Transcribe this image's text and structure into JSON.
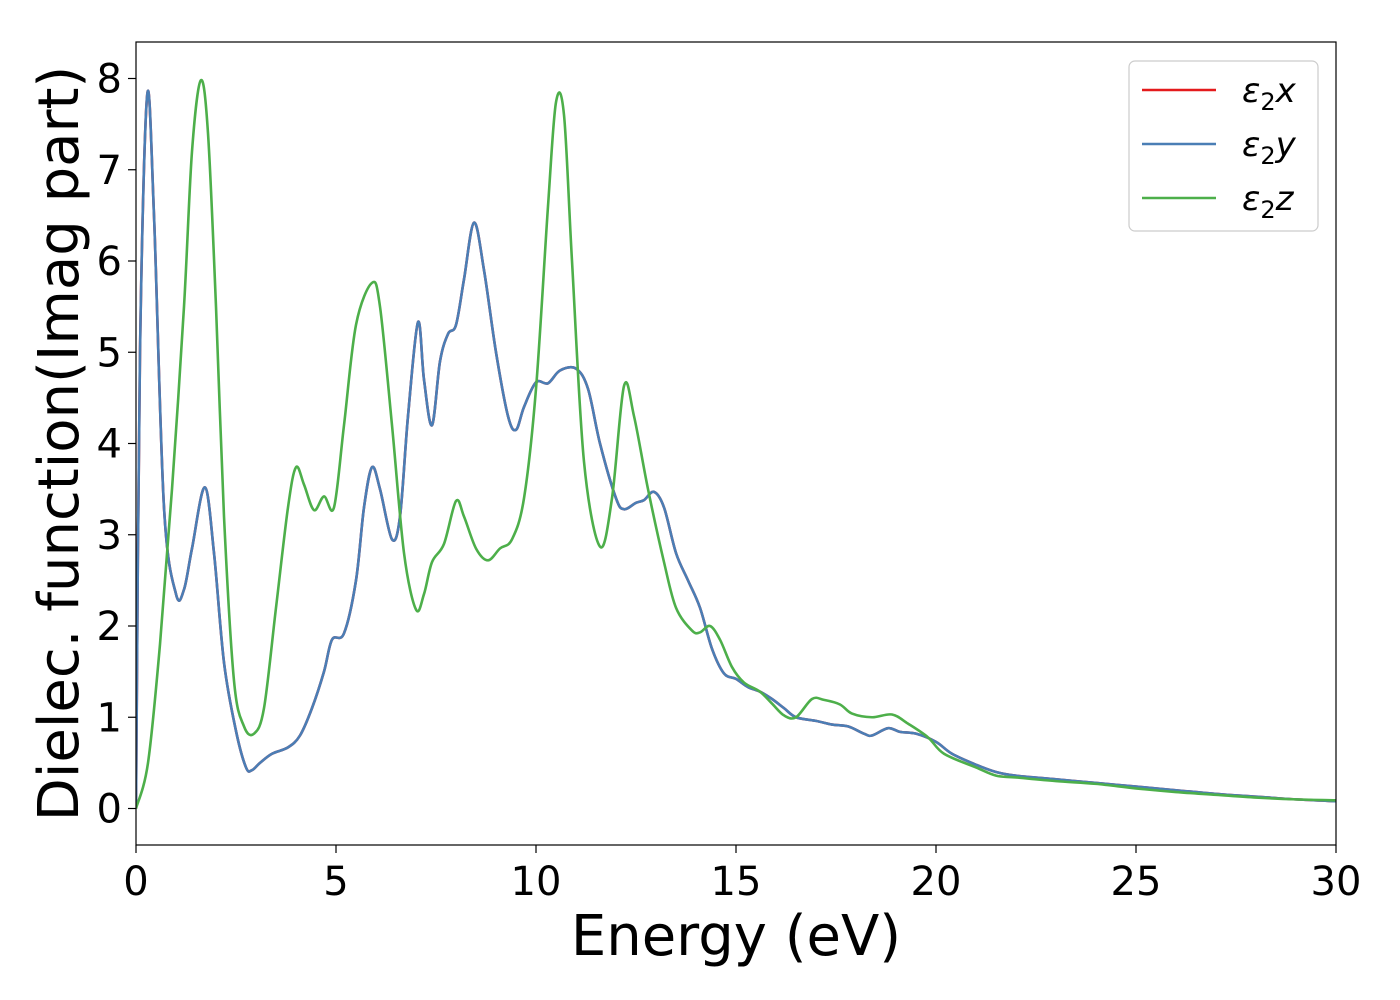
{
  "chart_data": {
    "type": "line",
    "title": "",
    "xlabel": "Energy (eV)",
    "ylabel": "Dielec. function(Imag part)",
    "xlim": [
      0,
      30
    ],
    "ylim": [
      -0.4,
      8.4
    ],
    "xticks": [
      0,
      5,
      10,
      15,
      20,
      25,
      30
    ],
    "yticks": [
      0,
      1,
      2,
      3,
      4,
      5,
      6,
      7,
      8
    ],
    "grid": false,
    "legend_position": "top-right",
    "series": [
      {
        "name": "ε2x",
        "legend_sub": "2",
        "legend_base": "ε",
        "legend_var": "x",
        "color": "#e41a1c",
        "points": [
          [
            0,
            0
          ],
          [
            0.1,
            5.0
          ],
          [
            0.28,
            7.82
          ],
          [
            0.45,
            6.5
          ],
          [
            0.7,
            3.3
          ],
          [
            1.0,
            2.35
          ],
          [
            1.2,
            2.4
          ],
          [
            1.4,
            2.85
          ],
          [
            1.72,
            3.52
          ],
          [
            1.95,
            2.8
          ],
          [
            2.2,
            1.6
          ],
          [
            2.5,
            0.85
          ],
          [
            2.75,
            0.45
          ],
          [
            2.9,
            0.42
          ],
          [
            3.1,
            0.5
          ],
          [
            3.4,
            0.6
          ],
          [
            3.8,
            0.67
          ],
          [
            4.1,
            0.8
          ],
          [
            4.4,
            1.1
          ],
          [
            4.7,
            1.5
          ],
          [
            4.9,
            1.85
          ],
          [
            5.2,
            1.92
          ],
          [
            5.5,
            2.5
          ],
          [
            5.7,
            3.3
          ],
          [
            5.9,
            3.74
          ],
          [
            6.1,
            3.5
          ],
          [
            6.4,
            2.95
          ],
          [
            6.6,
            3.2
          ],
          [
            6.8,
            4.3
          ],
          [
            7.05,
            5.33
          ],
          [
            7.2,
            4.7
          ],
          [
            7.4,
            4.2
          ],
          [
            7.6,
            4.9
          ],
          [
            7.8,
            5.2
          ],
          [
            8.0,
            5.3
          ],
          [
            8.2,
            5.8
          ],
          [
            8.45,
            6.42
          ],
          [
            8.7,
            5.9
          ],
          [
            9.0,
            5.0
          ],
          [
            9.3,
            4.3
          ],
          [
            9.5,
            4.15
          ],
          [
            9.7,
            4.4
          ],
          [
            10.0,
            4.67
          ],
          [
            10.3,
            4.66
          ],
          [
            10.6,
            4.8
          ],
          [
            11.0,
            4.82
          ],
          [
            11.3,
            4.6
          ],
          [
            11.6,
            4.0
          ],
          [
            12.0,
            3.4
          ],
          [
            12.2,
            3.28
          ],
          [
            12.5,
            3.35
          ],
          [
            12.7,
            3.38
          ],
          [
            12.95,
            3.47
          ],
          [
            13.2,
            3.3
          ],
          [
            13.5,
            2.8
          ],
          [
            13.8,
            2.5
          ],
          [
            14.1,
            2.2
          ],
          [
            14.4,
            1.75
          ],
          [
            14.7,
            1.48
          ],
          [
            15.0,
            1.42
          ],
          [
            15.3,
            1.33
          ],
          [
            15.6,
            1.28
          ],
          [
            15.9,
            1.2
          ],
          [
            16.2,
            1.1
          ],
          [
            16.5,
            1.0
          ],
          [
            17.0,
            0.96
          ],
          [
            17.4,
            0.92
          ],
          [
            17.8,
            0.9
          ],
          [
            18.2,
            0.82
          ],
          [
            18.4,
            0.8
          ],
          [
            18.8,
            0.88
          ],
          [
            19.1,
            0.84
          ],
          [
            19.5,
            0.82
          ],
          [
            20.0,
            0.73
          ],
          [
            20.4,
            0.6
          ],
          [
            21.0,
            0.48
          ],
          [
            21.5,
            0.4
          ],
          [
            22.0,
            0.36
          ],
          [
            23.0,
            0.32
          ],
          [
            24.0,
            0.28
          ],
          [
            25.0,
            0.24
          ],
          [
            26.0,
            0.2
          ],
          [
            27.0,
            0.16
          ],
          [
            28.0,
            0.13
          ],
          [
            29.0,
            0.1
          ],
          [
            30.0,
            0.08
          ]
        ]
      },
      {
        "name": "ε2y",
        "legend_sub": "2",
        "legend_base": "ε",
        "legend_var": "y",
        "color": "#4a7eb5",
        "points": [
          [
            0,
            0
          ],
          [
            0.1,
            5.0
          ],
          [
            0.28,
            7.82
          ],
          [
            0.45,
            6.5
          ],
          [
            0.7,
            3.3
          ],
          [
            1.0,
            2.35
          ],
          [
            1.2,
            2.4
          ],
          [
            1.4,
            2.85
          ],
          [
            1.72,
            3.52
          ],
          [
            1.95,
            2.8
          ],
          [
            2.2,
            1.6
          ],
          [
            2.5,
            0.85
          ],
          [
            2.75,
            0.45
          ],
          [
            2.9,
            0.42
          ],
          [
            3.1,
            0.5
          ],
          [
            3.4,
            0.6
          ],
          [
            3.8,
            0.67
          ],
          [
            4.1,
            0.8
          ],
          [
            4.4,
            1.1
          ],
          [
            4.7,
            1.5
          ],
          [
            4.9,
            1.85
          ],
          [
            5.2,
            1.92
          ],
          [
            5.5,
            2.5
          ],
          [
            5.7,
            3.3
          ],
          [
            5.9,
            3.74
          ],
          [
            6.1,
            3.5
          ],
          [
            6.4,
            2.95
          ],
          [
            6.6,
            3.2
          ],
          [
            6.8,
            4.3
          ],
          [
            7.05,
            5.33
          ],
          [
            7.2,
            4.7
          ],
          [
            7.4,
            4.2
          ],
          [
            7.6,
            4.9
          ],
          [
            7.8,
            5.2
          ],
          [
            8.0,
            5.3
          ],
          [
            8.2,
            5.8
          ],
          [
            8.45,
            6.42
          ],
          [
            8.7,
            5.9
          ],
          [
            9.0,
            5.0
          ],
          [
            9.3,
            4.3
          ],
          [
            9.5,
            4.15
          ],
          [
            9.7,
            4.4
          ],
          [
            10.0,
            4.67
          ],
          [
            10.3,
            4.66
          ],
          [
            10.6,
            4.8
          ],
          [
            11.0,
            4.82
          ],
          [
            11.3,
            4.6
          ],
          [
            11.6,
            4.0
          ],
          [
            12.0,
            3.4
          ],
          [
            12.2,
            3.28
          ],
          [
            12.5,
            3.35
          ],
          [
            12.7,
            3.38
          ],
          [
            12.95,
            3.47
          ],
          [
            13.2,
            3.3
          ],
          [
            13.5,
            2.8
          ],
          [
            13.8,
            2.5
          ],
          [
            14.1,
            2.2
          ],
          [
            14.4,
            1.75
          ],
          [
            14.7,
            1.48
          ],
          [
            15.0,
            1.42
          ],
          [
            15.3,
            1.33
          ],
          [
            15.6,
            1.28
          ],
          [
            15.9,
            1.2
          ],
          [
            16.2,
            1.1
          ],
          [
            16.5,
            1.0
          ],
          [
            17.0,
            0.96
          ],
          [
            17.4,
            0.92
          ],
          [
            17.8,
            0.9
          ],
          [
            18.2,
            0.82
          ],
          [
            18.4,
            0.8
          ],
          [
            18.8,
            0.88
          ],
          [
            19.1,
            0.84
          ],
          [
            19.5,
            0.82
          ],
          [
            20.0,
            0.73
          ],
          [
            20.4,
            0.6
          ],
          [
            21.0,
            0.48
          ],
          [
            21.5,
            0.4
          ],
          [
            22.0,
            0.36
          ],
          [
            23.0,
            0.32
          ],
          [
            24.0,
            0.28
          ],
          [
            25.0,
            0.24
          ],
          [
            26.0,
            0.2
          ],
          [
            27.0,
            0.16
          ],
          [
            28.0,
            0.13
          ],
          [
            29.0,
            0.1
          ],
          [
            30.0,
            0.08
          ]
        ]
      },
      {
        "name": "ε2z",
        "legend_sub": "2",
        "legend_base": "ε",
        "legend_var": "z",
        "color": "#4daf4a",
        "points": [
          [
            0,
            0
          ],
          [
            0.3,
            0.5
          ],
          [
            0.6,
            1.8
          ],
          [
            0.9,
            3.5
          ],
          [
            1.2,
            5.5
          ],
          [
            1.4,
            7.2
          ],
          [
            1.62,
            7.98
          ],
          [
            1.8,
            7.4
          ],
          [
            2.0,
            5.5
          ],
          [
            2.2,
            3.2
          ],
          [
            2.45,
            1.4
          ],
          [
            2.7,
            0.9
          ],
          [
            2.95,
            0.82
          ],
          [
            3.2,
            1.1
          ],
          [
            3.5,
            2.2
          ],
          [
            3.8,
            3.3
          ],
          [
            4.0,
            3.74
          ],
          [
            4.2,
            3.55
          ],
          [
            4.45,
            3.27
          ],
          [
            4.7,
            3.42
          ],
          [
            4.95,
            3.3
          ],
          [
            5.2,
            4.2
          ],
          [
            5.5,
            5.3
          ],
          [
            5.9,
            5.76
          ],
          [
            6.1,
            5.5
          ],
          [
            6.4,
            4.2
          ],
          [
            6.7,
            2.8
          ],
          [
            7.0,
            2.18
          ],
          [
            7.2,
            2.35
          ],
          [
            7.4,
            2.7
          ],
          [
            7.7,
            2.9
          ],
          [
            8.0,
            3.37
          ],
          [
            8.2,
            3.2
          ],
          [
            8.5,
            2.85
          ],
          [
            8.8,
            2.72
          ],
          [
            9.1,
            2.85
          ],
          [
            9.4,
            2.95
          ],
          [
            9.7,
            3.4
          ],
          [
            10.0,
            4.6
          ],
          [
            10.3,
            6.6
          ],
          [
            10.5,
            7.74
          ],
          [
            10.7,
            7.6
          ],
          [
            10.9,
            6.0
          ],
          [
            11.2,
            3.8
          ],
          [
            11.6,
            2.87
          ],
          [
            11.9,
            3.4
          ],
          [
            12.2,
            4.63
          ],
          [
            12.45,
            4.3
          ],
          [
            12.8,
            3.5
          ],
          [
            13.2,
            2.7
          ],
          [
            13.5,
            2.2
          ],
          [
            13.9,
            1.95
          ],
          [
            14.1,
            1.93
          ],
          [
            14.35,
            2.0
          ],
          [
            14.6,
            1.85
          ],
          [
            14.9,
            1.55
          ],
          [
            15.2,
            1.38
          ],
          [
            15.6,
            1.28
          ],
          [
            15.9,
            1.15
          ],
          [
            16.2,
            1.02
          ],
          [
            16.5,
            1.0
          ],
          [
            16.9,
            1.2
          ],
          [
            17.2,
            1.19
          ],
          [
            17.6,
            1.14
          ],
          [
            17.9,
            1.04
          ],
          [
            18.4,
            1.0
          ],
          [
            18.9,
            1.03
          ],
          [
            19.3,
            0.93
          ],
          [
            19.8,
            0.78
          ],
          [
            20.2,
            0.6
          ],
          [
            21.0,
            0.45
          ],
          [
            21.5,
            0.36
          ],
          [
            22.0,
            0.34
          ],
          [
            23.0,
            0.3
          ],
          [
            24.0,
            0.27
          ],
          [
            25.0,
            0.22
          ],
          [
            26.0,
            0.18
          ],
          [
            27.0,
            0.15
          ],
          [
            28.0,
            0.12
          ],
          [
            29.0,
            0.1
          ],
          [
            30.0,
            0.09
          ]
        ]
      }
    ]
  }
}
